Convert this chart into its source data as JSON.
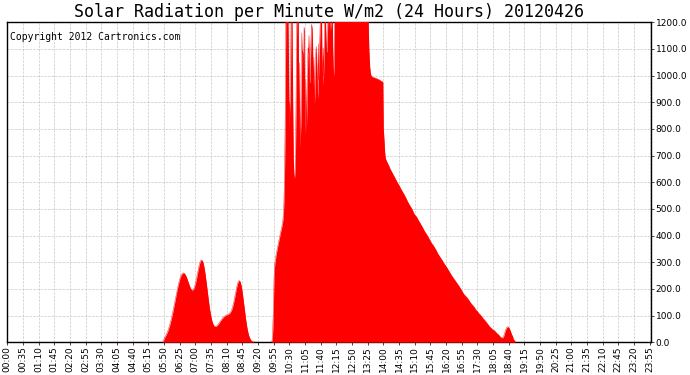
{
  "title": "Solar Radiation per Minute W/m2 (24 Hours) 20120426",
  "copyright_text": "Copyright 2012 Cartronics.com",
  "fill_color": "#FF0000",
  "background_color": "#FFFFFF",
  "plot_bg_color": "#FFFFFF",
  "grid_color": "#BBBBBB",
  "dashed_line_color": "#FF0000",
  "ylim": [
    0.0,
    1200.0
  ],
  "yticks": [
    0.0,
    100.0,
    200.0,
    300.0,
    400.0,
    500.0,
    600.0,
    700.0,
    800.0,
    900.0,
    1000.0,
    1100.0,
    1200.0
  ],
  "title_fontsize": 12,
  "copyright_fontsize": 7,
  "tick_fontsize": 6.5,
  "total_minutes": 1440,
  "xtick_interval": 35,
  "xtick_labels": [
    "00:00",
    "00:35",
    "01:10",
    "01:45",
    "02:20",
    "02:55",
    "03:30",
    "04:05",
    "04:40",
    "05:15",
    "05:50",
    "06:25",
    "07:00",
    "07:35",
    "08:10",
    "08:45",
    "09:20",
    "09:55",
    "10:30",
    "11:05",
    "11:40",
    "12:15",
    "12:50",
    "13:25",
    "14:00",
    "14:35",
    "15:10",
    "15:45",
    "16:20",
    "16:55",
    "17:30",
    "18:05",
    "18:40",
    "19:15",
    "19:50",
    "20:25",
    "21:00",
    "21:35",
    "22:10",
    "22:45",
    "23:20",
    "23:55"
  ]
}
